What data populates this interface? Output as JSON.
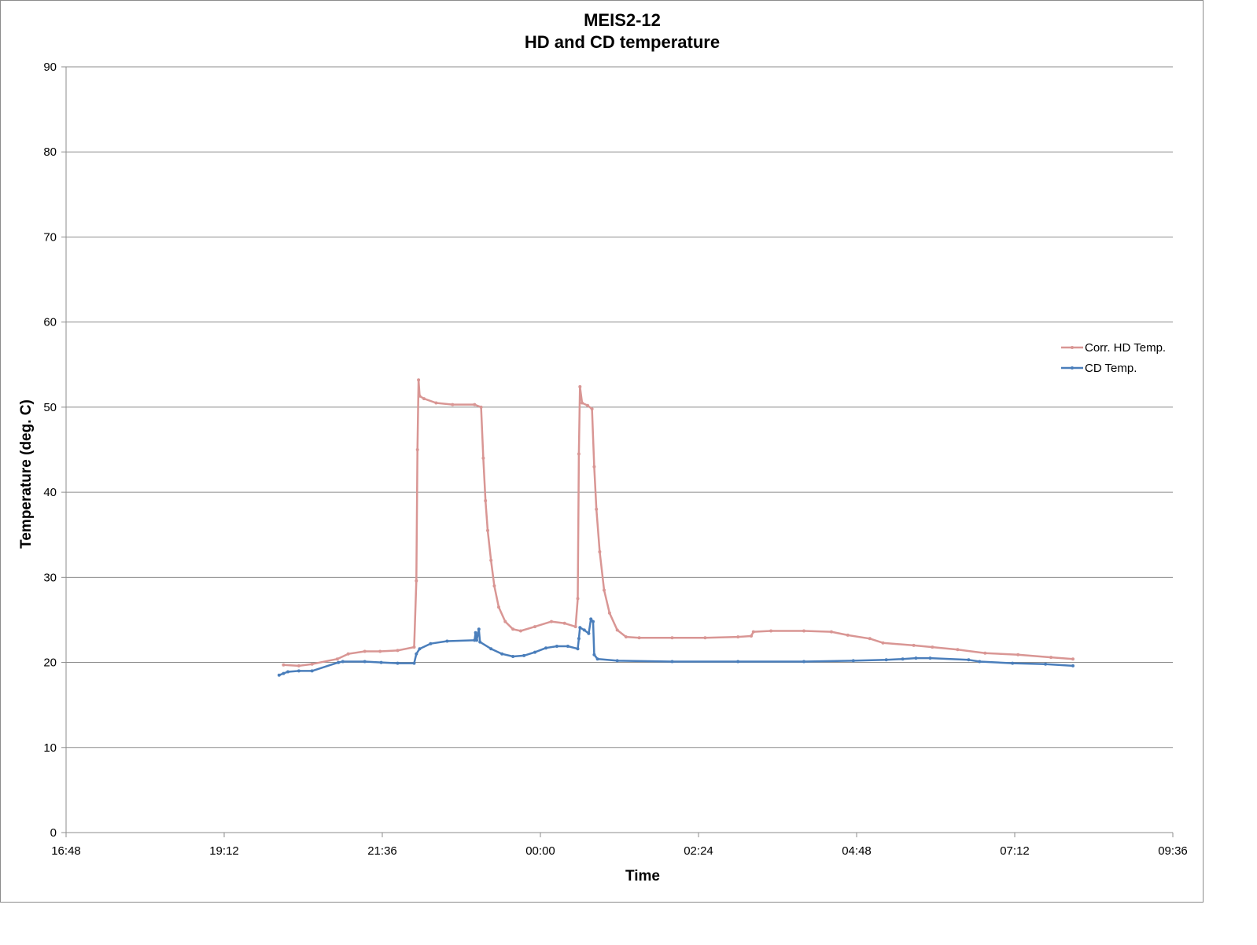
{
  "chart_data": {
    "type": "line",
    "title": "MEIS2-12",
    "subtitle": "HD and CD temperature",
    "xlabel": "Time",
    "ylabel": "Temperature (deg. C)",
    "x_ticks": [
      "16:48",
      "19:12",
      "21:36",
      "00:00",
      "02:24",
      "04:48",
      "07:12",
      "09:36"
    ],
    "x_range": [
      "16:48",
      "09:36"
    ],
    "ylim": [
      0,
      90
    ],
    "y_ticks": [
      0,
      10,
      20,
      30,
      40,
      50,
      60,
      70,
      80,
      90
    ],
    "grid": "horizontal",
    "legend_position": "right",
    "series": [
      {
        "name": "Corr. HD Temp.",
        "color": "#d99694",
        "points": [
          [
            "20:06",
            19.7
          ],
          [
            "20:20",
            19.6
          ],
          [
            "20:32",
            19.8
          ],
          [
            "20:55",
            20.4
          ],
          [
            "21:05",
            21.0
          ],
          [
            "21:20",
            21.3
          ],
          [
            "21:34",
            21.3
          ],
          [
            "21:50",
            21.4
          ],
          [
            "22:05",
            21.8
          ],
          [
            "22:07",
            29.6
          ],
          [
            "22:08",
            45.0
          ],
          [
            "22:09",
            53.2
          ],
          [
            "22:10",
            51.3
          ],
          [
            "22:14",
            51.0
          ],
          [
            "22:25",
            50.5
          ],
          [
            "22:40",
            50.3
          ],
          [
            "23:00",
            50.3
          ],
          [
            "23:06",
            50.0
          ],
          [
            "23:08",
            44.0
          ],
          [
            "23:10",
            39.0
          ],
          [
            "23:12",
            35.5
          ],
          [
            "23:15",
            32.0
          ],
          [
            "23:18",
            29.0
          ],
          [
            "23:22",
            26.5
          ],
          [
            "23:28",
            24.8
          ],
          [
            "23:35",
            23.9
          ],
          [
            "23:42",
            23.7
          ],
          [
            "23:55",
            24.2
          ],
          [
            "00:10",
            24.8
          ],
          [
            "00:22",
            24.6
          ],
          [
            "00:32",
            24.2
          ],
          [
            "00:34",
            27.5
          ],
          [
            "00:35",
            44.5
          ],
          [
            "00:36",
            52.4
          ],
          [
            "00:38",
            50.5
          ],
          [
            "00:43",
            50.2
          ],
          [
            "00:47",
            49.8
          ],
          [
            "00:49",
            43.0
          ],
          [
            "00:51",
            38.0
          ],
          [
            "00:54",
            33.0
          ],
          [
            "00:58",
            28.5
          ],
          [
            "01:03",
            25.8
          ],
          [
            "01:10",
            23.8
          ],
          [
            "01:18",
            23.0
          ],
          [
            "01:30",
            22.9
          ],
          [
            "02:00",
            22.9
          ],
          [
            "02:30",
            22.9
          ],
          [
            "03:00",
            23.0
          ],
          [
            "03:12",
            23.1
          ],
          [
            "03:14",
            23.6
          ],
          [
            "03:30",
            23.7
          ],
          [
            "04:00",
            23.7
          ],
          [
            "04:25",
            23.6
          ],
          [
            "04:40",
            23.2
          ],
          [
            "05:00",
            22.8
          ],
          [
            "05:12",
            22.3
          ],
          [
            "05:40",
            22.0
          ],
          [
            "05:57",
            21.8
          ],
          [
            "06:20",
            21.5
          ],
          [
            "06:45",
            21.1
          ],
          [
            "07:15",
            20.9
          ],
          [
            "07:45",
            20.6
          ],
          [
            "08:05",
            20.4
          ]
        ]
      },
      {
        "name": "CD Temp.",
        "color": "#4a7ebb",
        "points": [
          [
            "20:02",
            18.5
          ],
          [
            "20:06",
            18.7
          ],
          [
            "20:10",
            18.9
          ],
          [
            "20:20",
            19.0
          ],
          [
            "20:32",
            19.0
          ],
          [
            "20:56",
            20.0
          ],
          [
            "21:00",
            20.1
          ],
          [
            "21:20",
            20.1
          ],
          [
            "21:35",
            20.0
          ],
          [
            "21:50",
            19.9
          ],
          [
            "22:05",
            19.9
          ],
          [
            "22:07",
            21.0
          ],
          [
            "22:10",
            21.6
          ],
          [
            "22:20",
            22.2
          ],
          [
            "22:35",
            22.5
          ],
          [
            "23:00",
            22.6
          ],
          [
            "23:01",
            23.5
          ],
          [
            "23:02",
            22.6
          ],
          [
            "23:04",
            23.9
          ],
          [
            "23:05",
            22.4
          ],
          [
            "23:15",
            21.6
          ],
          [
            "23:25",
            21.0
          ],
          [
            "23:35",
            20.7
          ],
          [
            "23:45",
            20.8
          ],
          [
            "23:55",
            21.2
          ],
          [
            "00:05",
            21.7
          ],
          [
            "00:15",
            21.9
          ],
          [
            "00:25",
            21.9
          ],
          [
            "00:34",
            21.6
          ],
          [
            "00:35",
            22.8
          ],
          [
            "00:36",
            24.1
          ],
          [
            "00:40",
            23.8
          ],
          [
            "00:44",
            23.4
          ],
          [
            "00:46",
            25.1
          ],
          [
            "00:48",
            24.8
          ],
          [
            "00:49",
            20.9
          ],
          [
            "00:52",
            20.4
          ],
          [
            "01:10",
            20.2
          ],
          [
            "02:00",
            20.1
          ],
          [
            "03:00",
            20.1
          ],
          [
            "04:00",
            20.1
          ],
          [
            "04:45",
            20.2
          ],
          [
            "05:15",
            20.3
          ],
          [
            "05:30",
            20.4
          ],
          [
            "05:42",
            20.5
          ],
          [
            "05:55",
            20.5
          ],
          [
            "06:30",
            20.3
          ],
          [
            "06:40",
            20.1
          ],
          [
            "07:10",
            19.9
          ],
          [
            "07:40",
            19.8
          ],
          [
            "08:05",
            19.6
          ]
        ]
      }
    ]
  }
}
